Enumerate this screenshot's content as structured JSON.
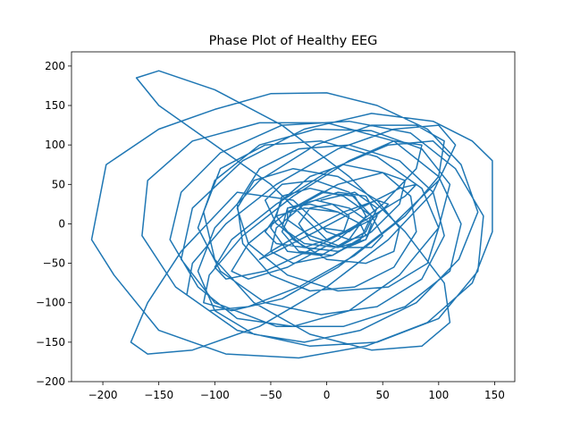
{
  "chart_data": {
    "type": "line",
    "title": "Phase Plot of Healthy EEG",
    "xlabel": "",
    "ylabel": "",
    "xlim": [
      -228,
      168
    ],
    "ylim": [
      -200,
      218
    ],
    "xticks": [
      -200,
      -150,
      -100,
      -50,
      0,
      50,
      100,
      150
    ],
    "yticks": [
      -200,
      -150,
      -100,
      -50,
      0,
      50,
      100,
      150,
      200
    ],
    "xtick_labels": [
      "−200",
      "−150",
      "−100",
      "−50",
      "0",
      "50",
      "100",
      "150"
    ],
    "ytick_labels": [
      "−200",
      "−150",
      "−100",
      "−50",
      "0",
      "50",
      "100",
      "150",
      "200"
    ],
    "grid": false,
    "legend": "none",
    "series": [
      {
        "color": "#1f77b4",
        "x": [
          -5,
          25,
          45,
          35,
          10,
          -20,
          -45,
          -55,
          -40,
          -10,
          20,
          40,
          30,
          5,
          -25,
          -40,
          -30,
          -5,
          25,
          35,
          20,
          -5,
          -35,
          -50,
          -40,
          -15,
          15,
          50,
          75,
          80,
          60,
          25,
          -15,
          -50,
          -75,
          -80,
          -60,
          -25,
          20,
          65,
          95,
          105,
          85,
          45,
          -5,
          -55,
          -95,
          -115,
          -100,
          -60,
          -10,
          40,
          85,
          110,
          100,
          65,
          20,
          -30,
          -80,
          -115,
          -140,
          -130,
          -95,
          -40,
          20,
          75,
          115,
          140,
          135,
          100,
          45,
          -15,
          -80,
          -135,
          -165,
          -160,
          -120,
          -60,
          0,
          60,
          100,
          120,
          110,
          70,
          15,
          -45,
          -100,
          -130,
          -120,
          -75,
          -20,
          40,
          95,
          130,
          148,
          148,
          130,
          90,
          35,
          -25,
          -90,
          -150,
          -190,
          -210,
          -197,
          -150,
          -100,
          -50,
          0,
          45,
          90,
          120,
          135,
          118,
          80,
          30,
          -20,
          -65,
          -100,
          -115,
          -100,
          -60,
          -10,
          40,
          80,
          105,
          100,
          70,
          25,
          -25,
          -70,
          -105,
          -125,
          -120,
          -90,
          -45,
          10,
          60,
          100,
          115,
          100,
          60,
          10,
          -40,
          -85,
          -110,
          -105,
          -75,
          -30,
          20,
          60,
          85,
          80,
          50,
          10,
          -35,
          -70,
          -85,
          -70,
          -35,
          10,
          50,
          70,
          65,
          40,
          5,
          -30,
          -50,
          -45,
          -20,
          10,
          35,
          45,
          35,
          10,
          -20,
          -40,
          -35,
          -10,
          20,
          40,
          35,
          10,
          -15,
          -25,
          -15,
          5,
          20,
          15,
          0,
          -50,
          -105,
          -150,
          -170,
          -150,
          -100,
          -40,
          20,
          70,
          105,
          110,
          85,
          40,
          -15,
          -65,
          -100,
          -110,
          -95,
          -55,
          -5,
          45,
          85,
          100,
          90,
          55,
          10,
          -35,
          -70,
          -80,
          -65,
          -30,
          10,
          45,
          65,
          60,
          35,
          0,
          -30,
          -45,
          -40,
          -15,
          15,
          40,
          50,
          40,
          15,
          -15,
          -35,
          -35,
          -15,
          10,
          30,
          35,
          20,
          0,
          -30,
          -80,
          -130,
          -160,
          -175,
          -160,
          -120,
          -60,
          0,
          55,
          95,
          110,
          95,
          55,
          5,
          -45,
          -85,
          -100,
          -90,
          -55,
          -10,
          35,
          70,
          80,
          65,
          30,
          -10,
          -45,
          -60,
          -50,
          -20,
          15,
          45,
          55,
          40,
          10,
          -20,
          -45,
          -55,
          -45,
          -20,
          10,
          30,
          20,
          -5
        ],
        "y": [
          30,
          40,
          20,
          -10,
          -30,
          -25,
          0,
          30,
          50,
          55,
          40,
          10,
          -20,
          -40,
          -35,
          -10,
          20,
          40,
          35,
          10,
          -20,
          -40,
          -35,
          -5,
          30,
          60,
          75,
          65,
          35,
          -10,
          -55,
          -80,
          -85,
          -65,
          -25,
          25,
          70,
          95,
          100,
          80,
          40,
          -15,
          -70,
          -105,
          -115,
          -100,
          -60,
          -5,
          55,
          100,
          120,
          118,
          95,
          50,
          -5,
          -65,
          -110,
          -130,
          -120,
          -80,
          -20,
          40,
          90,
          125,
          130,
          115,
          70,
          10,
          -60,
          -120,
          -150,
          -155,
          -135,
          -80,
          -15,
          55,
          105,
          128,
          128,
          105,
          60,
          0,
          -60,
          -105,
          -130,
          -130,
          -100,
          -45,
          20,
          80,
          120,
          140,
          130,
          105,
          80,
          -10,
          -75,
          -125,
          -155,
          -170,
          -165,
          -135,
          -65,
          -20,
          75,
          120,
          145,
          165,
          166,
          150,
          120,
          75,
          15,
          -45,
          -100,
          -135,
          -150,
          -140,
          -110,
          -60,
          -5,
          55,
          100,
          125,
          125,
          105,
          60,
          10,
          -40,
          -80,
          -105,
          -110,
          -90,
          -50,
          0,
          50,
          95,
          120,
          125,
          100,
          55,
          0,
          -55,
          -95,
          -110,
          -100,
          -65,
          -15,
          35,
          80,
          105,
          100,
          70,
          25,
          -20,
          -55,
          -70,
          -60,
          -25,
          15,
          50,
          65,
          55,
          25,
          -10,
          -40,
          -50,
          -35,
          -5,
          25,
          40,
          35,
          10,
          -20,
          -35,
          -30,
          -5,
          20,
          30,
          20,
          0,
          -20,
          -30,
          -20,
          0,
          20,
          25,
          10,
          -10,
          -20,
          50,
          105,
          150,
          185,
          194,
          170,
          125,
          60,
          -10,
          -75,
          -125,
          -155,
          -160,
          -140,
          -100,
          -45,
          15,
          70,
          100,
          105,
          85,
          45,
          -5,
          -50,
          -80,
          -85,
          -65,
          -25,
          20,
          55,
          70,
          60,
          30,
          -5,
          -35,
          -50,
          -45,
          -20,
          10,
          35,
          45,
          35,
          10,
          -15,
          -30,
          -30,
          -15,
          5,
          20,
          25,
          15,
          0,
          -15,
          -20,
          -10,
          30,
          40,
          -35,
          -100,
          -150,
          -165,
          -160,
          -130,
          -80,
          -20,
          40,
          85,
          105,
          100,
          70,
          25,
          -20,
          -55,
          -70,
          -60,
          -30,
          5,
          35,
          50,
          45,
          20,
          -10,
          -35,
          -45,
          -35,
          -10,
          15,
          30,
          25,
          5,
          -15,
          -30,
          -25,
          -10,
          10,
          20,
          15,
          0,
          -10,
          -5
        ]
      }
    ]
  }
}
